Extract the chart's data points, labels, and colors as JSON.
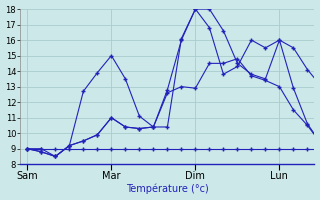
{
  "xlabel": "Température (°c)",
  "background_color": "#cce8e8",
  "grid_color": "#aacccc",
  "line_color": "#2222bb",
  "ylim": [
    8,
    18
  ],
  "yticks": [
    8,
    9,
    10,
    11,
    12,
    13,
    14,
    15,
    16,
    17,
    18
  ],
  "xtick_labels": [
    "Sam",
    "Mar",
    "Dim",
    "Lun"
  ],
  "xtick_positions": [
    0,
    6,
    12,
    18
  ],
  "num_points": 22,
  "lines": [
    [
      9.0,
      9.0,
      8.5,
      9.2,
      12.7,
      13.9,
      15.0,
      13.5,
      11.1,
      10.4,
      10.4,
      16.1,
      18.0,
      18.0,
      16.6,
      14.5,
      13.8,
      13.5,
      16.0,
      15.5,
      14.1,
      13.0
    ],
    [
      9.0,
      8.8,
      8.5,
      9.2,
      9.5,
      9.9,
      11.0,
      10.4,
      10.3,
      10.4,
      12.6,
      13.0,
      12.9,
      14.5,
      14.5,
      14.8,
      13.7,
      13.4,
      13.0,
      11.5,
      10.5,
      9.3
    ],
    [
      9.0,
      9.0,
      9.0,
      9.0,
      9.0,
      9.0,
      9.0,
      9.0,
      9.0,
      9.0,
      9.0,
      9.0,
      9.0,
      9.0,
      9.0,
      9.0,
      9.0,
      9.0,
      9.0,
      9.0,
      9.0,
      9.0
    ],
    [
      9.0,
      8.8,
      8.5,
      9.2,
      9.5,
      9.9,
      11.0,
      10.4,
      10.3,
      10.4,
      12.8,
      16.0,
      18.0,
      16.8,
      13.8,
      14.3,
      16.0,
      15.5,
      16.0,
      12.9,
      10.6,
      9.3
    ]
  ],
  "ylabel_fontsize": 6,
  "xlabel_fontsize": 7,
  "xtick_fontsize": 7,
  "ytick_fontsize": 6
}
